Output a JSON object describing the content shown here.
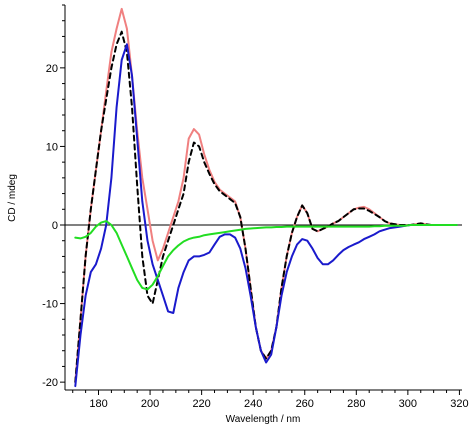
{
  "chart_data": {
    "type": "line",
    "xlabel": "Wavelength / nm",
    "ylabel": "CD / mdeg",
    "xlim": [
      167,
      321
    ],
    "ylim": [
      -21,
      28
    ],
    "xticks": [
      180,
      200,
      220,
      240,
      260,
      280,
      300,
      320
    ],
    "yticks": [
      -20,
      -10,
      0,
      10,
      20
    ],
    "grid": false,
    "zero_line": true,
    "series": [
      {
        "color": "#f08080",
        "dash": "solid",
        "x": [
          171,
          173,
          175,
          177,
          179,
          181,
          183,
          185,
          187,
          189,
          191,
          193,
          195,
          197,
          199,
          201,
          203,
          205,
          207,
          209,
          211,
          213,
          215,
          217,
          219,
          221,
          223,
          225,
          227,
          229,
          231,
          233,
          235,
          237,
          239,
          241,
          243,
          245,
          247,
          249,
          251,
          253,
          255,
          257,
          259,
          261,
          263,
          265,
          267,
          269,
          271,
          273,
          275,
          277,
          279,
          281,
          283,
          285,
          287,
          289,
          291,
          293,
          295,
          297,
          299,
          301,
          303,
          305,
          307,
          309,
          311,
          313,
          315,
          317,
          319
        ],
        "y": [
          -20,
          -12,
          -4,
          2,
          7,
          12,
          17,
          22,
          25,
          27.5,
          25,
          19,
          12,
          6,
          2,
          -2,
          -4.5,
          -3,
          -1,
          1,
          3,
          6,
          11,
          12.2,
          11.5,
          9,
          7,
          5.5,
          4.5,
          4,
          3.5,
          3,
          1,
          -3,
          -8,
          -13,
          -16,
          -17,
          -16,
          -13,
          -8,
          -4,
          -1,
          1,
          2.5,
          1.5,
          -0.5,
          -0.8,
          -0.5,
          -0.2,
          0.2,
          0.5,
          1,
          1.5,
          2,
          2.2,
          2.3,
          2,
          1.5,
          1,
          0.5,
          0.2,
          0.1,
          0,
          0,
          0,
          0.1,
          0.2,
          0.1,
          0,
          0,
          0,
          0,
          0,
          0
        ]
      },
      {
        "color": "#000000",
        "dash": "dashed",
        "x": [
          171,
          173,
          175,
          177,
          179,
          181,
          183,
          185,
          187,
          189,
          191,
          193,
          195,
          197,
          199,
          201,
          203,
          205,
          207,
          209,
          211,
          213,
          215,
          217,
          219,
          221,
          223,
          225,
          227,
          229,
          231,
          233,
          235,
          237,
          239,
          241,
          243,
          245,
          247,
          249,
          251,
          253,
          255,
          257,
          259,
          261,
          263,
          265,
          267,
          269,
          271,
          273,
          275,
          277,
          279,
          281,
          283,
          285,
          287,
          289,
          291,
          293,
          295,
          297,
          299,
          301,
          303,
          305,
          307,
          309,
          311,
          313,
          315,
          317,
          319
        ],
        "y": [
          -20,
          -12,
          -4,
          2,
          7,
          12,
          16,
          20,
          23,
          24.6,
          22,
          15,
          5,
          -4,
          -9,
          -10,
          -7,
          -4,
          -2,
          0,
          2,
          4,
          8,
          10.5,
          10,
          8,
          6.5,
          5.2,
          4.3,
          3.8,
          3.3,
          2.8,
          1,
          -3,
          -8,
          -13,
          -16,
          -17,
          -16,
          -13,
          -8,
          -4,
          -1,
          1,
          2.5,
          1.5,
          -0.5,
          -0.8,
          -0.5,
          -0.2,
          0.2,
          0.5,
          1,
          1.5,
          2,
          2.1,
          2.1,
          1.8,
          1.4,
          1,
          0.5,
          0.2,
          0.1,
          0,
          0,
          0,
          0.1,
          0.2,
          0.1,
          0,
          0,
          0,
          0,
          0,
          0
        ]
      },
      {
        "color": "#1a1acc",
        "dash": "solid",
        "x": [
          171,
          173,
          175,
          177,
          179,
          181,
          183,
          185,
          187,
          189,
          191,
          193,
          195,
          197,
          199,
          201,
          203,
          205,
          207,
          209,
          211,
          213,
          215,
          217,
          219,
          221,
          223,
          225,
          227,
          229,
          231,
          233,
          235,
          237,
          239,
          241,
          243,
          245,
          247,
          249,
          251,
          253,
          255,
          257,
          259,
          261,
          263,
          265,
          267,
          269,
          271,
          273,
          275,
          277,
          279,
          281,
          283,
          285,
          287,
          289,
          291,
          293,
          295,
          297,
          299,
          301,
          303,
          305,
          307,
          309,
          311,
          313,
          315,
          317,
          319
        ],
        "y": [
          -20.5,
          -14,
          -9,
          -6,
          -5,
          -3,
          0,
          6,
          15,
          21,
          23,
          19,
          11,
          3,
          -2,
          -5,
          -7,
          -9,
          -11,
          -11.2,
          -8,
          -6,
          -4.5,
          -4,
          -4,
          -3.8,
          -3.5,
          -2.5,
          -1.5,
          -1.2,
          -1.2,
          -1.6,
          -3,
          -5.5,
          -9,
          -13,
          -16,
          -17.5,
          -16.5,
          -13,
          -9,
          -6,
          -4,
          -2.5,
          -1.8,
          -2,
          -3,
          -4.2,
          -5,
          -5,
          -4.5,
          -3.8,
          -3.2,
          -2.8,
          -2.5,
          -2.2,
          -1.8,
          -1.5,
          -1.2,
          -0.8,
          -0.6,
          -0.4,
          -0.3,
          -0.2,
          -0.1,
          0,
          0,
          0,
          0,
          0,
          0,
          0,
          0,
          0,
          0
        ]
      },
      {
        "color": "#22dd22",
        "dash": "solid",
        "x": [
          171,
          173,
          175,
          177,
          179,
          181,
          183,
          185,
          187,
          189,
          191,
          193,
          195,
          197,
          199,
          201,
          203,
          205,
          207,
          209,
          211,
          213,
          215,
          217,
          219,
          221,
          223,
          225,
          227,
          229,
          231,
          233,
          235,
          237,
          239,
          241,
          243,
          245,
          247,
          249,
          251,
          253,
          255,
          257,
          259,
          261,
          263,
          265,
          267,
          269,
          271,
          273,
          275,
          277,
          279,
          281,
          283,
          285,
          287,
          289,
          291,
          293,
          295,
          297,
          299,
          301,
          303,
          305,
          307,
          309,
          311,
          313,
          315,
          317,
          319
        ],
        "y": [
          -1.6,
          -1.7,
          -1.5,
          -1,
          -0.2,
          0.3,
          0.5,
          0,
          -1,
          -2.5,
          -4,
          -5.5,
          -7,
          -8,
          -8.2,
          -7.6,
          -6.5,
          -5.2,
          -4,
          -3.2,
          -2.6,
          -2.1,
          -1.8,
          -1.6,
          -1.5,
          -1.3,
          -1.2,
          -1.1,
          -1,
          -0.9,
          -0.8,
          -0.7,
          -0.6,
          -0.5,
          -0.45,
          -0.4,
          -0.35,
          -0.3,
          -0.3,
          -0.25,
          -0.25,
          -0.2,
          -0.2,
          -0.2,
          -0.2,
          -0.2,
          -0.2,
          -0.2,
          -0.2,
          -0.2,
          -0.2,
          -0.2,
          -0.2,
          -0.2,
          -0.2,
          -0.2,
          -0.2,
          -0.2,
          -0.15,
          -0.15,
          -0.1,
          -0.1,
          -0.1,
          -0.1,
          -0.1,
          0,
          0,
          0,
          0,
          0,
          0,
          0,
          0,
          0,
          0
        ]
      }
    ]
  }
}
